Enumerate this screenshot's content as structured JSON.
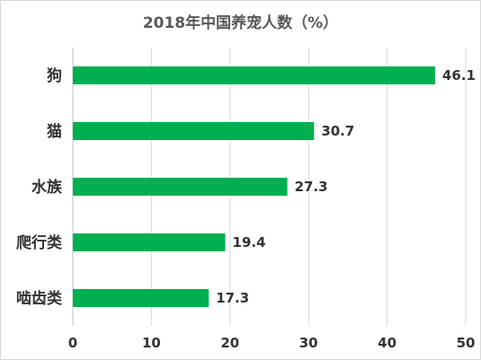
{
  "chart_data": {
    "type": "bar",
    "orientation": "horizontal",
    "title": "2018年中国养宠人数（%）",
    "categories": [
      "狗",
      "猫",
      "水族",
      "爬行类",
      "啮齿类"
    ],
    "values": [
      46.1,
      30.7,
      27.3,
      19.4,
      17.3
    ],
    "xlim": [
      0,
      50
    ],
    "xticks": [
      "0",
      "10",
      "20",
      "30",
      "40",
      "50"
    ],
    "grid": "vertical",
    "legend": "none",
    "data_labels": [
      "46.1",
      "30.7",
      "27.3",
      "19.4",
      "17.3"
    ],
    "colors": {
      "bar": "#00b050",
      "grid": "#d9d9d9",
      "text": "#333333",
      "title": "#595959"
    }
  }
}
